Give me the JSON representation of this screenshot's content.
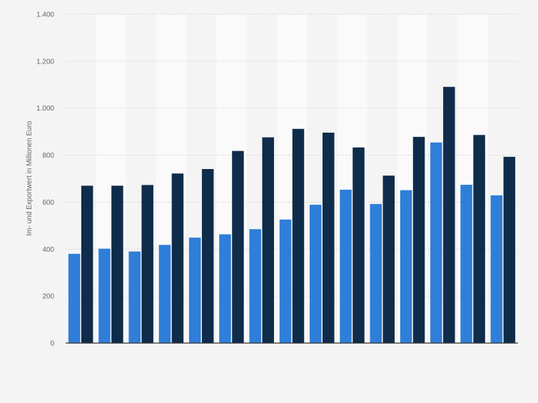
{
  "chart_data": {
    "type": "bar",
    "title": "",
    "xlabel": "",
    "ylabel": "Im- und Exportwert in Millionen Euro",
    "ylim": [
      0,
      1400
    ],
    "yticks": [
      0,
      200,
      400,
      600,
      800,
      1000,
      1200,
      1400
    ],
    "ytick_labels": [
      "0",
      "200",
      "400",
      "600",
      "800",
      "1.000",
      "1.200",
      "1.400"
    ],
    "grid": true,
    "categories": [
      "",
      "",
      "",
      "",
      "",
      "",
      "",
      "",
      "",
      "",
      "",
      "",
      "",
      "",
      ""
    ],
    "series": [
      {
        "color": "#2f7ed8",
        "values": [
          380,
          402,
          390,
          418,
          449,
          463,
          485,
          526,
          589,
          653,
          592,
          651,
          854,
          674,
          629
        ]
      },
      {
        "color": "#0f2c4a",
        "values": [
          670,
          670,
          673,
          722,
          741,
          818,
          876,
          912,
          896,
          833,
          713,
          878,
          1091,
          886,
          793
        ]
      }
    ]
  }
}
